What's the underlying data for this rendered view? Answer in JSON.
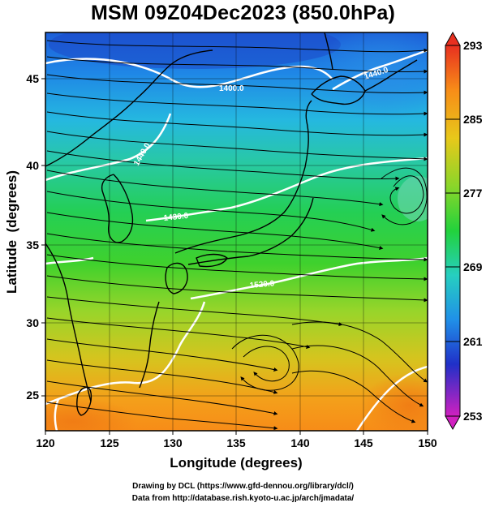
{
  "title": "MSM 09Z04Dec2023 (850.0hPa)",
  "xlabel": "Longitude (degrees)",
  "ylabel": "Latitude  (degrees)",
  "x_ticks": [
    "120",
    "125",
    "130",
    "135",
    "140",
    "145",
    "150"
  ],
  "y_ticks": [
    "25",
    "30",
    "35",
    "40",
    "45"
  ],
  "colorbar_ticks": [
    "293",
    "285",
    "277",
    "269",
    "261",
    "253"
  ],
  "contour_labels": [
    "1400.0",
    "1440.0",
    "1440.0",
    "1480.0",
    "1520.0"
  ],
  "credit_line1": "Drawing by DCL (https://www.gfd-dennou.org/library/dcl/)",
  "credit_line2": "Data from http://database.rish.kyoto-u.ac.jp/arch/jmadata/",
  "colors": {
    "field_cold": "#1e64dc",
    "field_mid": "#22d23c",
    "field_warm": "#ff8c14",
    "contour": "#ffffff",
    "streamline": "#000000",
    "coast": "#000000"
  }
}
